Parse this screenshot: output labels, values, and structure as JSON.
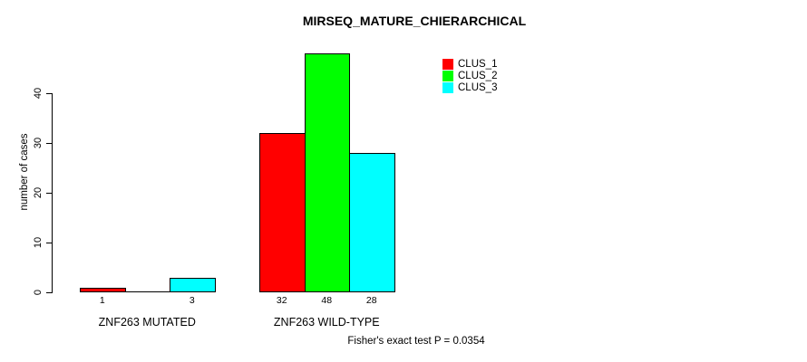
{
  "chart_data": {
    "type": "bar",
    "title": "MIRSEQ_MATURE_CHIERARCHICAL",
    "ylabel": "number of cases",
    "xlabel": "",
    "ylim": [
      0,
      48
    ],
    "yticks": [
      0,
      10,
      20,
      30,
      40
    ],
    "grid": false,
    "legend_position": "top-right",
    "categories": [
      "ZNF263 MUTATED",
      "ZNF263 WILD-TYPE"
    ],
    "series": [
      {
        "name": "CLUS_1",
        "color": "#ff0000",
        "values": [
          1,
          32
        ]
      },
      {
        "name": "CLUS_2",
        "color": "#00ff00",
        "values": [
          0,
          48
        ]
      },
      {
        "name": "CLUS_3",
        "color": "#00ffff",
        "values": [
          3,
          28
        ]
      }
    ],
    "annotation": "Fisher's exact test P = 0.0354"
  },
  "colors": {
    "background": "#ffffff",
    "axis": "#000000",
    "text": "#000000"
  }
}
